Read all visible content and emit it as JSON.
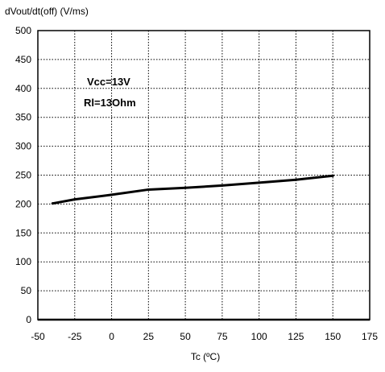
{
  "chart_data": {
    "type": "line",
    "ylabel": "dVout/dt(off) (V/ms)",
    "xlabel": "Tc (ºC)",
    "xlim": [
      -50,
      175
    ],
    "ylim": [
      0,
      500
    ],
    "xticks": [
      -50,
      -25,
      0,
      25,
      50,
      75,
      100,
      125,
      150,
      175
    ],
    "yticks": [
      0,
      50,
      100,
      150,
      200,
      250,
      300,
      350,
      400,
      450,
      500
    ],
    "grid": true,
    "annotations": [
      "Vcc=13V",
      "Rl=13Ohm"
    ],
    "series": [
      {
        "x": [
          -40,
          -25,
          0,
          25,
          50,
          75,
          100,
          125,
          150
        ],
        "y": [
          201,
          208,
          216,
          225,
          228,
          232,
          237,
          242,
          249
        ]
      }
    ]
  }
}
